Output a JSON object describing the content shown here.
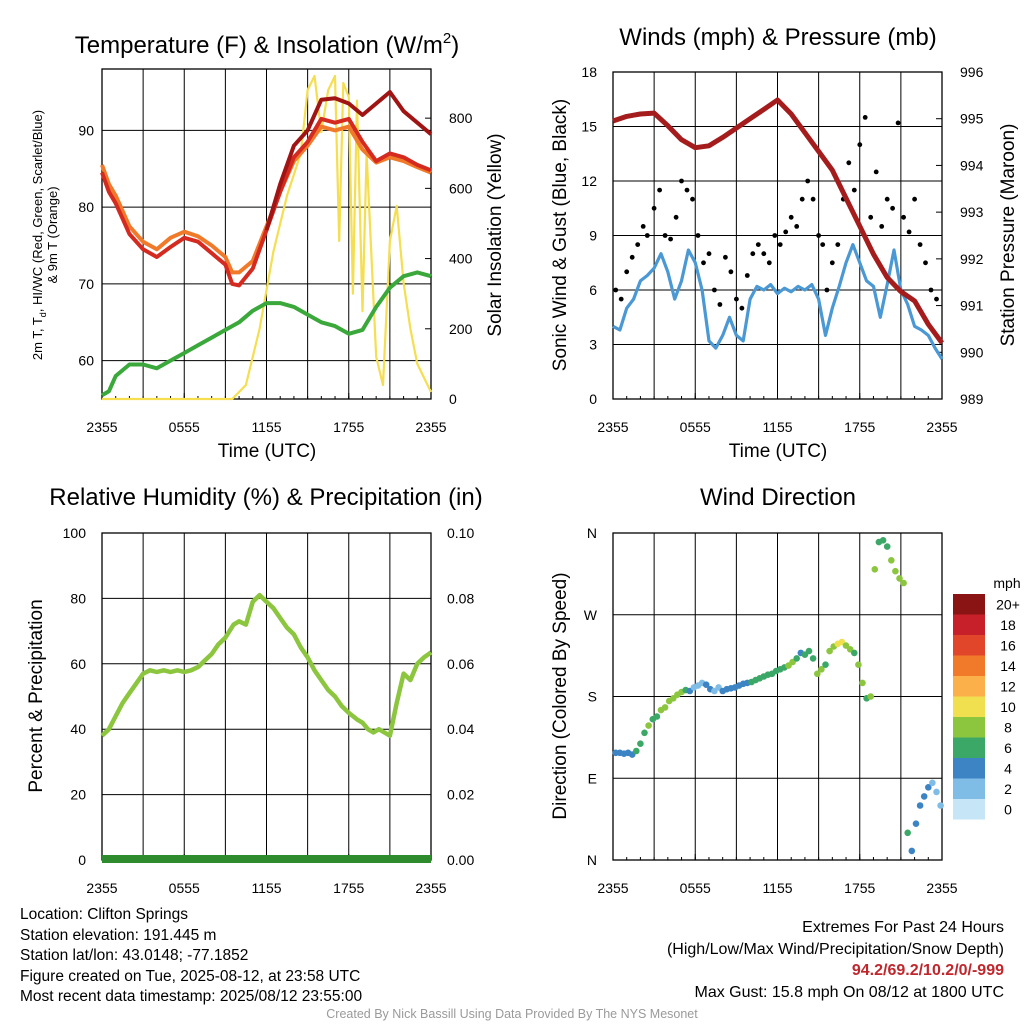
{
  "panels": {
    "temp": {
      "title_main": "Temperature (F) & Insolation (W/m",
      "title_sup": "2",
      "title_close": ")",
      "ylabel_line1": "2m T, T",
      "ylabel_sub": "d",
      "ylabel_line1b": ", HI/WC (Red, Green, Scarlet/Blue)",
      "ylabel_line2": "& 9m T (Orange)",
      "y2label": "Solar Insolation (Yellow)",
      "xlabel": "Time (UTC)"
    },
    "wind": {
      "title": "Winds (mph) & Pressure (mb)",
      "ylabel": "Sonic Wind & Gust (Blue, Black)",
      "y2label": "Station Pressure (Maroon)",
      "xlabel": "Time (UTC)"
    },
    "rh": {
      "title": "Relative Humidity (%) & Precipitation (in)",
      "ylabel": "Percent & Precipitation"
    },
    "dir": {
      "title": "Wind Direction",
      "ylabel": "Direction (Colored By Speed)",
      "legend_title": "mph"
    }
  },
  "info": {
    "location": "Location: Clifton Springs",
    "elevation": "Station elevation: 191.445 m",
    "latlon": "Station lat/lon: 43.0148; -77.1852",
    "created": "Figure created on Tue, 2025-08-12, at 23:58 UTC",
    "recent": "Most recent data timestamp: 2025/08/12 23:55:00"
  },
  "extremes": {
    "line1": "Extremes For Past 24 Hours",
    "line2": "(High/Low/Max Wind/Precipitation/Snow Depth)",
    "values": "94.2/69.2/10.2/0/-999",
    "gust": "Max Gust: 15.8 mph On 08/12 at 1800 UTC"
  },
  "credit": "Created By Nick Bassill Using Data Provided By The NYS Mesonet",
  "colors": {
    "temp_red": "#d42a20",
    "temp_9m_orange": "#f07a2a",
    "dewpoint_green": "#3aa83a",
    "heat_index_scarlet": "#a01414",
    "insolation_yellow": "#f5de50",
    "wind_blue": "#4a98d4",
    "gust_black": "#000000",
    "pressure_maroon": "#a51c1c",
    "rh_green": "#8cc63f",
    "precip_green": "#2e8b2e"
  },
  "chart_data": [
    {
      "type": "line",
      "panel": "temperature_insolation",
      "x_ticks": [
        "2355",
        "0555",
        "1155",
        "1755",
        "2355"
      ],
      "x_unit": "hours since 2355 UTC",
      "ylim": [
        55,
        98
      ],
      "y_ticks": [
        60,
        70,
        80,
        90
      ],
      "y2lim": [
        0,
        940
      ],
      "y2_ticks": [
        0,
        200,
        400,
        600,
        800
      ],
      "series": [
        {
          "name": "2m T",
          "color": "#d42a20",
          "axis": "left",
          "x": [
            0,
            0.5,
            1,
            1.5,
            2,
            3,
            4,
            5,
            6,
            7,
            8,
            9,
            9.5,
            10,
            11,
            12,
            13,
            14,
            15,
            16,
            17,
            18,
            19,
            20,
            21,
            22,
            23,
            24
          ],
          "y": [
            84.5,
            82,
            80.5,
            78.5,
            76.5,
            74.5,
            73.5,
            74.8,
            76,
            75.5,
            74,
            72.5,
            70,
            69.8,
            72,
            77,
            82,
            86.5,
            88.5,
            91.5,
            91,
            91.5,
            88.5,
            86,
            87,
            86.5,
            85.5,
            84.8
          ]
        },
        {
          "name": "9m T",
          "color": "#f07a2a",
          "axis": "left",
          "x": [
            0,
            0.5,
            1,
            1.5,
            2,
            3,
            4,
            5,
            6,
            7,
            8,
            9,
            9.5,
            10,
            11,
            12,
            13,
            14,
            15,
            16,
            17,
            18,
            19,
            20,
            21,
            22,
            23,
            24
          ],
          "y": [
            85.5,
            83,
            81.5,
            79.5,
            77.5,
            75.5,
            74.5,
            76,
            76.8,
            76.2,
            75,
            73.5,
            71.5,
            71.5,
            73,
            77.5,
            82,
            86,
            88,
            90.5,
            90,
            90.5,
            87.5,
            85.8,
            86.5,
            86,
            85.2,
            84.5
          ]
        },
        {
          "name": "HI/WC",
          "color": "#a01414",
          "axis": "left",
          "x": [
            12,
            13,
            14,
            15,
            16,
            17,
            18,
            19,
            20,
            21,
            22,
            23,
            24
          ],
          "y": [
            77,
            83,
            88,
            90,
            94,
            94.2,
            93.5,
            92,
            93.5,
            95,
            92.5,
            91,
            89.5
          ]
        },
        {
          "name": "Td",
          "color": "#3aa83a",
          "axis": "left",
          "x": [
            0,
            0.5,
            1,
            2,
            3,
            4,
            5,
            6,
            7,
            8,
            9,
            10,
            11,
            12,
            13,
            14,
            15,
            16,
            17,
            18,
            19,
            20,
            21,
            22,
            23,
            24
          ],
          "y": [
            55.5,
            56,
            58,
            59.5,
            59.5,
            59,
            60,
            61,
            62,
            63,
            64,
            65,
            66.5,
            67.5,
            67.5,
            67,
            66,
            65,
            64.5,
            63.5,
            64,
            67,
            69.5,
            71,
            71.5,
            71
          ]
        },
        {
          "name": "Solar Insolation",
          "color": "#f5de50",
          "axis": "right",
          "x": [
            0,
            9.5,
            10.5,
            11.5,
            12.5,
            13.5,
            14.5,
            15,
            15.5,
            16,
            16.5,
            17,
            17.3,
            17.6,
            18,
            18.3,
            18.6,
            19,
            19.3,
            20,
            20.5,
            21,
            21.5,
            22,
            22.5,
            23,
            23.5,
            24
          ],
          "y": [
            0,
            0,
            40,
            200,
            420,
            580,
            700,
            880,
            920,
            760,
            880,
            920,
            450,
            900,
            860,
            300,
            850,
            250,
            700,
            120,
            40,
            450,
            550,
            330,
            200,
            100,
            60,
            20
          ]
        }
      ]
    },
    {
      "type": "line",
      "panel": "winds_pressure",
      "x_ticks": [
        "2355",
        "0555",
        "1155",
        "1755",
        "2355"
      ],
      "x_unit": "hours since 2355 UTC",
      "ylim": [
        0,
        18
      ],
      "y_ticks": [
        0,
        3,
        6,
        9,
        12,
        15,
        18
      ],
      "y2lim": [
        989,
        996
      ],
      "y2_ticks": [
        989,
        990,
        991,
        992,
        993,
        994,
        995,
        996
      ],
      "series": [
        {
          "name": "Sonic Wind",
          "color": "#4a98d4",
          "axis": "left",
          "x": [
            0,
            0.5,
            1,
            1.5,
            2,
            2.5,
            3,
            3.5,
            4,
            4.5,
            5,
            5.5,
            6,
            6.5,
            7,
            7.5,
            8,
            8.5,
            9,
            9.5,
            10,
            10.5,
            11,
            11.5,
            12,
            12.5,
            13,
            13.5,
            14,
            14.5,
            15,
            15.5,
            16,
            16.5,
            17,
            17.5,
            18,
            18.5,
            19,
            19.5,
            20,
            20.5,
            21,
            21.5,
            22,
            22.5,
            23,
            23.5,
            24
          ],
          "y": [
            4,
            3.8,
            5,
            5.5,
            6.5,
            6.8,
            7.2,
            8,
            7,
            5.5,
            6.5,
            8.2,
            7.5,
            6,
            3.2,
            2.8,
            3.5,
            4.5,
            3.5,
            3.2,
            5.5,
            6.2,
            6,
            6.3,
            5.8,
            6.1,
            5.9,
            6.2,
            6,
            6.3,
            5.5,
            3.5,
            5,
            6.2,
            7.5,
            8.5,
            7.5,
            6.5,
            6.2,
            4.5,
            6.3,
            8.2,
            6,
            5.2,
            4,
            3.8,
            3.5,
            2.8,
            2.2
          ]
        },
        {
          "name": "Station Pressure",
          "color": "#a51c1c",
          "axis": "right",
          "x": [
            0,
            1,
            2,
            3,
            4,
            5,
            6,
            7,
            8,
            9,
            10,
            11,
            12,
            13,
            14,
            15,
            16,
            17,
            18,
            19,
            20,
            21,
            22,
            23,
            24
          ],
          "y": [
            994.95,
            995.05,
            995.1,
            995.12,
            994.85,
            994.55,
            994.38,
            994.42,
            994.6,
            994.8,
            995.0,
            995.2,
            995.4,
            995.1,
            994.7,
            994.3,
            993.9,
            993.3,
            992.7,
            992.1,
            991.6,
            991.3,
            991.1,
            990.6,
            990.2
          ]
        }
      ],
      "gust_points": {
        "name": "Gust",
        "color": "#000000",
        "x": [
          0.2,
          0.6,
          1,
          1.4,
          1.8,
          2.2,
          2.5,
          3,
          3.4,
          3.8,
          4.2,
          4.6,
          5,
          5.4,
          5.8,
          6.2,
          6.6,
          7,
          7.4,
          7.8,
          8.2,
          8.6,
          9,
          9.4,
          9.8,
          10.2,
          10.6,
          11,
          11.4,
          11.8,
          12.2,
          12.6,
          13,
          13.4,
          13.8,
          14.2,
          14.6,
          15,
          15.3,
          15.6,
          16,
          16.4,
          16.8,
          17.2,
          17.6,
          18,
          18.4,
          18.8,
          19.2,
          19.6,
          20,
          20.4,
          20.8,
          21.2,
          21.6,
          22,
          22.4,
          22.8,
          23.2,
          23.6
        ],
        "y": [
          6,
          5.5,
          7,
          7.8,
          8.5,
          9.5,
          9,
          10.5,
          11.5,
          9,
          8.8,
          10,
          12,
          11.5,
          11,
          9,
          7.5,
          8,
          6,
          5.2,
          7.8,
          7,
          5.5,
          5,
          6.8,
          8,
          8.5,
          8,
          7.5,
          9,
          8.5,
          9.2,
          10,
          9.5,
          11,
          12,
          11,
          9,
          8.5,
          6,
          7.5,
          8.5,
          11,
          13,
          11.5,
          14,
          15.5,
          10,
          12.5,
          9.5,
          11,
          10.5,
          15.2,
          10,
          9.2,
          11,
          8.5,
          7.5,
          6,
          5.5
        ]
      }
    },
    {
      "type": "line",
      "panel": "relative_humidity_precipitation",
      "x_ticks": [
        "2355",
        "0555",
        "1155",
        "1755",
        "2355"
      ],
      "x_unit": "hours since 2355 UTC",
      "ylim": [
        0,
        100
      ],
      "y_ticks": [
        0,
        20,
        40,
        60,
        80,
        100
      ],
      "y2lim": [
        0,
        0.1
      ],
      "y2_ticks": [
        "0.00",
        "0.02",
        "0.04",
        "0.06",
        "0.08",
        "0.10"
      ],
      "series": [
        {
          "name": "Relative Humidity",
          "color": "#8cc63f",
          "axis": "left",
          "x": [
            0,
            0.5,
            1,
            1.5,
            2,
            2.5,
            3,
            3.5,
            4,
            4.5,
            5,
            5.5,
            6,
            6.5,
            7,
            7.5,
            8,
            8.5,
            9,
            9.3,
            9.6,
            10,
            10.5,
            11,
            11.5,
            12,
            12.5,
            13,
            13.5,
            14,
            14.5,
            15,
            15.5,
            16,
            16.5,
            17,
            17.5,
            18,
            18.3,
            18.6,
            19,
            19.4,
            19.8,
            20.2,
            20.6,
            21,
            21.5,
            22,
            22.5,
            23,
            23.5,
            24
          ],
          "y": [
            38,
            40,
            44,
            48,
            51,
            54,
            57,
            58,
            57.5,
            58,
            57.5,
            58,
            57.5,
            58,
            59,
            61,
            63,
            66,
            68,
            70,
            72,
            73,
            72,
            79,
            81,
            79,
            77,
            74,
            71,
            69,
            65,
            62,
            58,
            55,
            52,
            50,
            47,
            45,
            44,
            43,
            42,
            40,
            39,
            40,
            39,
            38,
            48,
            57,
            55,
            60,
            62,
            63.5
          ]
        },
        {
          "name": "Precipitation",
          "color": "#2e8b2e",
          "axis": "right",
          "x": [
            0,
            24
          ],
          "y": [
            0,
            0
          ]
        }
      ]
    },
    {
      "type": "scatter",
      "panel": "wind_direction",
      "x_ticks": [
        "2355",
        "0555",
        "1155",
        "1755",
        "2355"
      ],
      "x_unit": "hours since 2355 UTC",
      "ylim": [
        0,
        360
      ],
      "y_ticks": [
        "N",
        "E",
        "S",
        "W",
        "N"
      ],
      "colorbar": {
        "labels": [
          "0",
          "2",
          "4",
          "6",
          "8",
          "10",
          "12",
          "14",
          "16",
          "18",
          "20+"
        ],
        "colors": [
          "#c6e6f7",
          "#7fbde6",
          "#3c84c4",
          "#3ca868",
          "#8cc63f",
          "#f0e050",
          "#fbb04a",
          "#f07a2a",
          "#e2462a",
          "#c8202a",
          "#8a1414"
        ]
      },
      "points": {
        "x": [
          0.2,
          0.5,
          0.8,
          1.1,
          1.4,
          1.7,
          2,
          2.3,
          2.6,
          2.9,
          3.2,
          3.5,
          3.8,
          4.1,
          4.4,
          4.7,
          5,
          5.3,
          5.6,
          5.9,
          6.2,
          6.5,
          6.8,
          7.1,
          7.4,
          7.7,
          8,
          8.3,
          8.6,
          8.9,
          9.2,
          9.5,
          9.8,
          10.1,
          10.4,
          10.7,
          11,
          11.3,
          11.6,
          11.9,
          12.2,
          12.5,
          12.8,
          13.1,
          13.4,
          13.7,
          14,
          14.3,
          14.6,
          14.9,
          15.2,
          15.5,
          15.8,
          16.1,
          16.4,
          16.7,
          17,
          17.3,
          17.6,
          17.9,
          18.2,
          18.5,
          18.8,
          19.1,
          19.4,
          19.7,
          20,
          20.3,
          20.6,
          20.9,
          21.2,
          21.5,
          21.8,
          22.1,
          22.4,
          22.7,
          23,
          23.3,
          23.6,
          23.9
        ],
        "y": [
          118,
          118,
          117,
          118,
          116,
          120,
          128,
          140,
          148,
          155,
          158,
          165,
          168,
          175,
          178,
          182,
          185,
          187,
          186,
          190,
          192,
          195,
          193,
          188,
          186,
          190,
          186,
          188,
          189,
          190,
          192,
          194,
          195,
          196,
          198,
          200,
          202,
          204,
          205,
          208,
          210,
          212,
          214,
          218,
          222,
          228,
          226,
          230,
          222,
          205,
          210,
          215,
          230,
          235,
          238,
          240,
          236,
          232,
          228,
          215,
          195,
          178,
          180,
          320,
          350,
          352,
          345,
          330,
          318,
          310,
          305,
          30,
          10,
          40,
          60,
          70,
          80,
          85,
          75,
          60
        ],
        "speeds": [
          3,
          3,
          3,
          4,
          4,
          6,
          6,
          6,
          7,
          6,
          6,
          7,
          7,
          7,
          8,
          8,
          8,
          6,
          4,
          2,
          2,
          2,
          3,
          4,
          2,
          2,
          3,
          4,
          4,
          4,
          3,
          4,
          4,
          5,
          6,
          6,
          6,
          5,
          5,
          6,
          6,
          6,
          8,
          7,
          5,
          4,
          5,
          6,
          6,
          7,
          7,
          6,
          7,
          8,
          10,
          9,
          7,
          7,
          6,
          8,
          7,
          6,
          7,
          7,
          6,
          5,
          6,
          7,
          7,
          7,
          7,
          5,
          4,
          4,
          4,
          3,
          3,
          2,
          2,
          2
        ]
      }
    }
  ]
}
